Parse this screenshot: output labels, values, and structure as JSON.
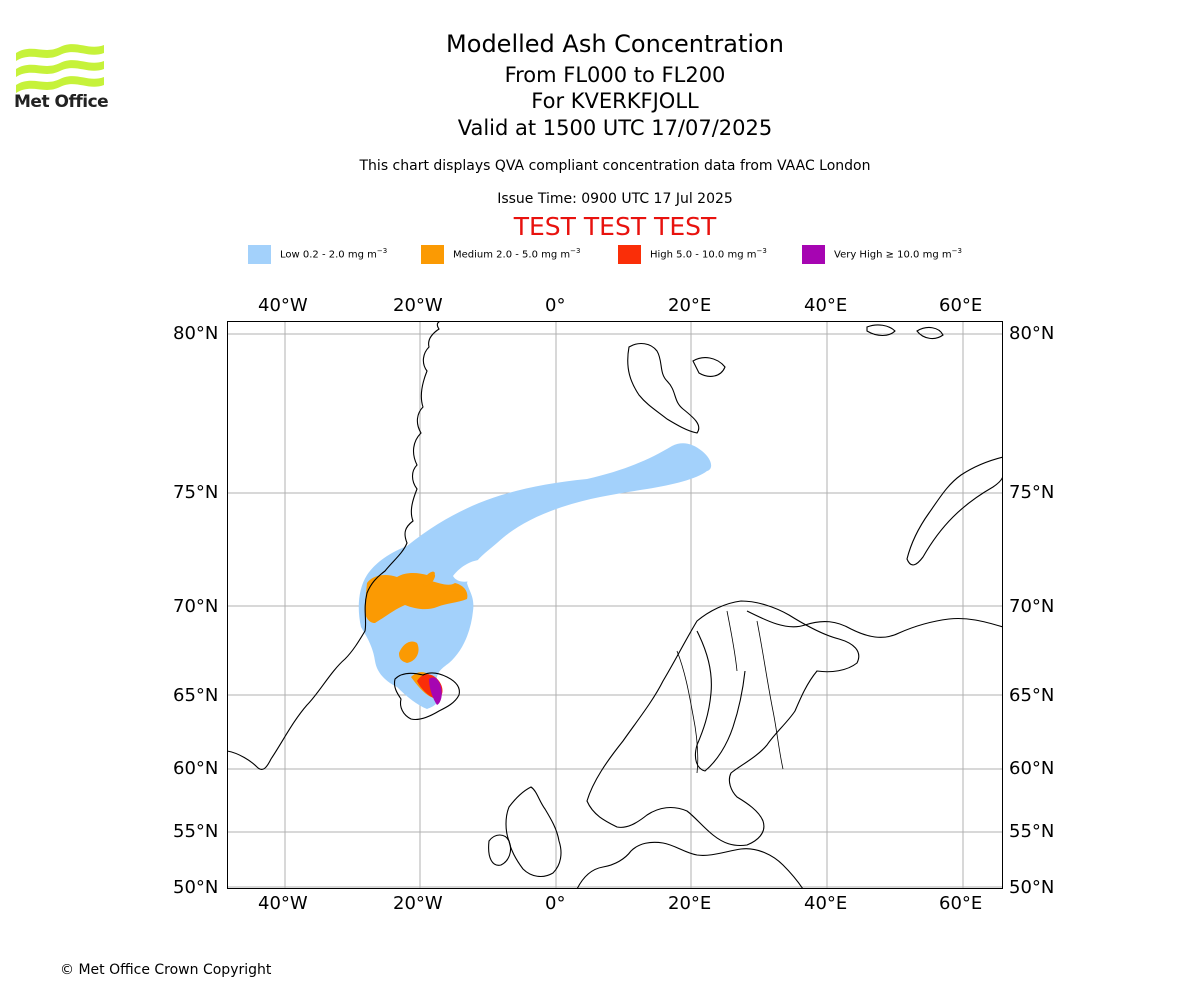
{
  "header": {
    "title": "Modelled Ash Concentration",
    "levels": "From FL000 to FL200",
    "volcano": "For KVERKFJOLL",
    "valid": "Valid at 1500 UTC 17/07/2025",
    "subtitle": "This chart displays QVA compliant concentration data from VAAC London",
    "issue_time": "Issue Time: 0900 UTC 17 Jul 2025",
    "warning": "TEST TEST TEST"
  },
  "logo": {
    "text": "Met Office",
    "color": "#c6f23a"
  },
  "legend": [
    {
      "label": "Low 0.2 - 2.0 mg m",
      "exp": "−3",
      "color": "#a3d1fb"
    },
    {
      "label": "Medium 2.0 - 5.0 mg m",
      "exp": "−3",
      "color": "#fb9a03"
    },
    {
      "label": "High 5.0 - 10.0 mg m",
      "exp": "−3",
      "color": "#fa2e08"
    },
    {
      "label": "Very High  ≥  10.0 mg m",
      "exp": "−3",
      "color": "#a605b2"
    }
  ],
  "map": {
    "lon_range": [
      -50,
      65
    ],
    "lat_range": [
      50,
      80
    ],
    "lon_labels": [
      "40°W",
      "20°W",
      "0°",
      "20°E",
      "40°E",
      "60°E"
    ],
    "lat_labels": [
      "80°N",
      "75°N",
      "70°N",
      "65°N",
      "60°N",
      "55°N",
      "50°N"
    ],
    "grid": true,
    "coastline_color": "#000000",
    "grid_color": "#b0b0b0"
  },
  "footer": {
    "copyright": "© Met Office Crown Copyright"
  }
}
